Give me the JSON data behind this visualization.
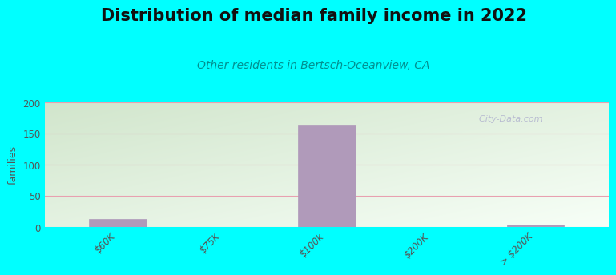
{
  "title": "Distribution of median family income in 2022",
  "subtitle": "Other residents in Bertsch-Oceanview, CA",
  "categories": [
    "$60K",
    "$75K",
    "$100k",
    "$200K",
    "> $200K"
  ],
  "values": [
    12,
    0,
    163,
    0,
    3
  ],
  "bar_color": "#b09aba",
  "bar_edge_color": "#b09aba",
  "background_color": "#00ffff",
  "grad_topleft": [
    0.82,
    0.9,
    0.8
  ],
  "grad_botright": [
    0.97,
    1.0,
    0.97
  ],
  "ylabel": "families",
  "ylim": [
    0,
    200
  ],
  "yticks": [
    0,
    50,
    100,
    150,
    200
  ],
  "grid_color": "#e8a0b0",
  "watermark": "  City-Data.com",
  "title_fontsize": 15,
  "subtitle_fontsize": 10,
  "subtitle_color": "#009090",
  "bar_width": 0.55,
  "tick_label_color": "#555555",
  "title_color": "#111111"
}
